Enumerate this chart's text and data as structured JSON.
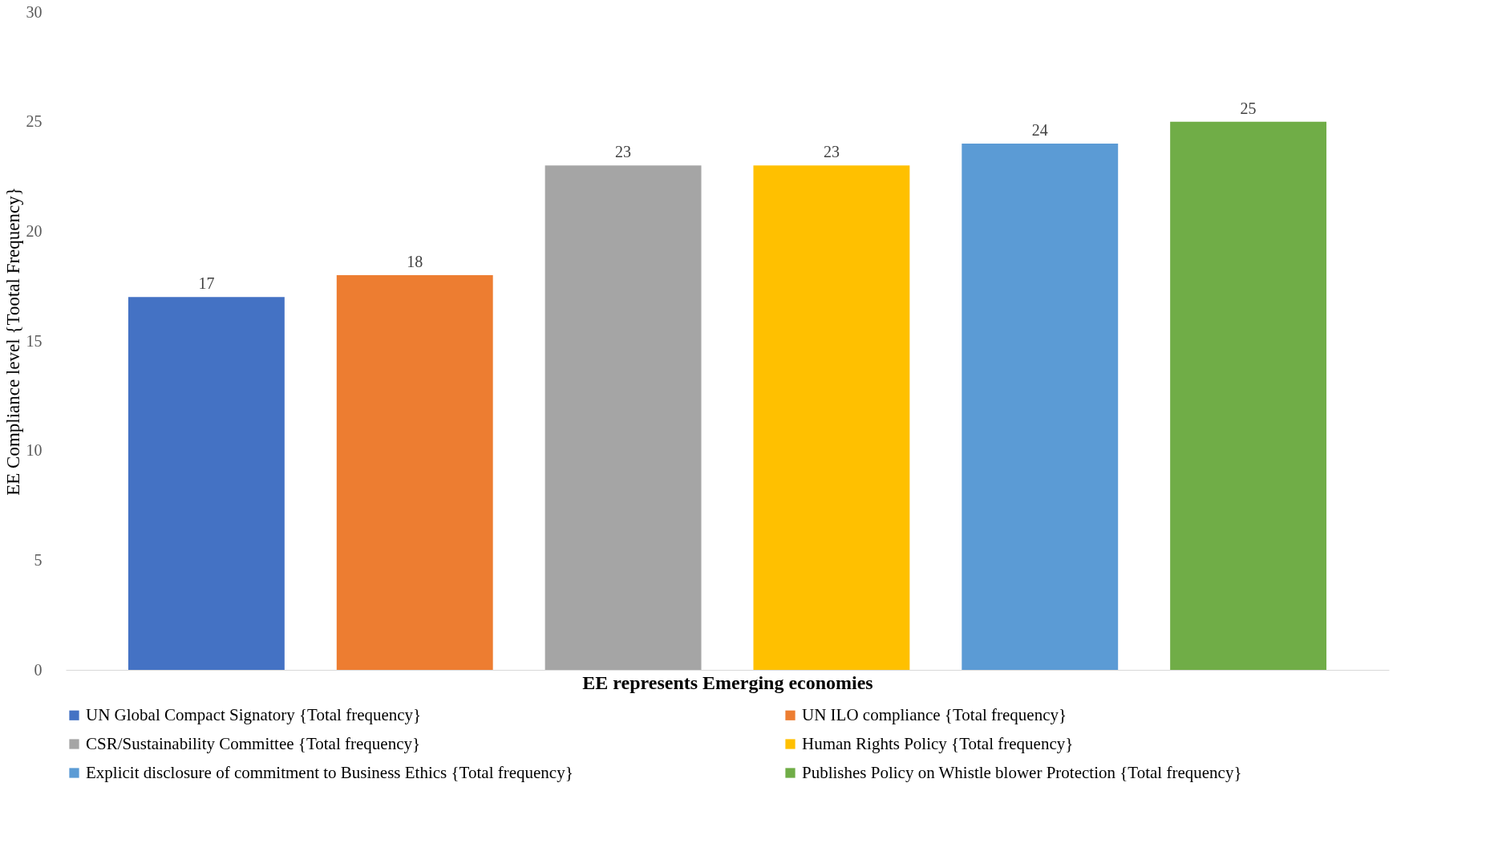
{
  "chart_data": {
    "type": "bar",
    "categories": [
      null
    ],
    "xlabel": "EE represents Emerging economies",
    "ylabel": "EE Compliance level {Tootal  Frequency}",
    "series": [
      {
        "name": "UN Global Compact Signatory {Total frequency}",
        "color": "#4472c4",
        "values": [
          17
        ]
      },
      {
        "name": "UN ILO compliance {Total frequency}",
        "color": "#ed7d31",
        "values": [
          18
        ]
      },
      {
        "name": "CSR/Sustainability Committee {Total frequency}",
        "color": "#a5a5a5",
        "values": [
          23
        ]
      },
      {
        "name": "Human Rights Policy {Total frequency}",
        "color": "#ffc000",
        "values": [
          23
        ]
      },
      {
        "name": "Explicit disclosure of commitment to Business Ethics {Total frequency}",
        "color": "#5b9bd5",
        "values": [
          24
        ]
      },
      {
        "name": "Publishes Policy on Whistle blower Protection {Total frequency}",
        "color": "#70ad47",
        "values": [
          25
        ]
      }
    ],
    "ylim": [
      0,
      30
    ],
    "yticks": [
      0,
      5,
      10,
      15,
      20,
      25,
      30
    ],
    "grid": false,
    "data_labels": true,
    "legend": "bottom"
  }
}
